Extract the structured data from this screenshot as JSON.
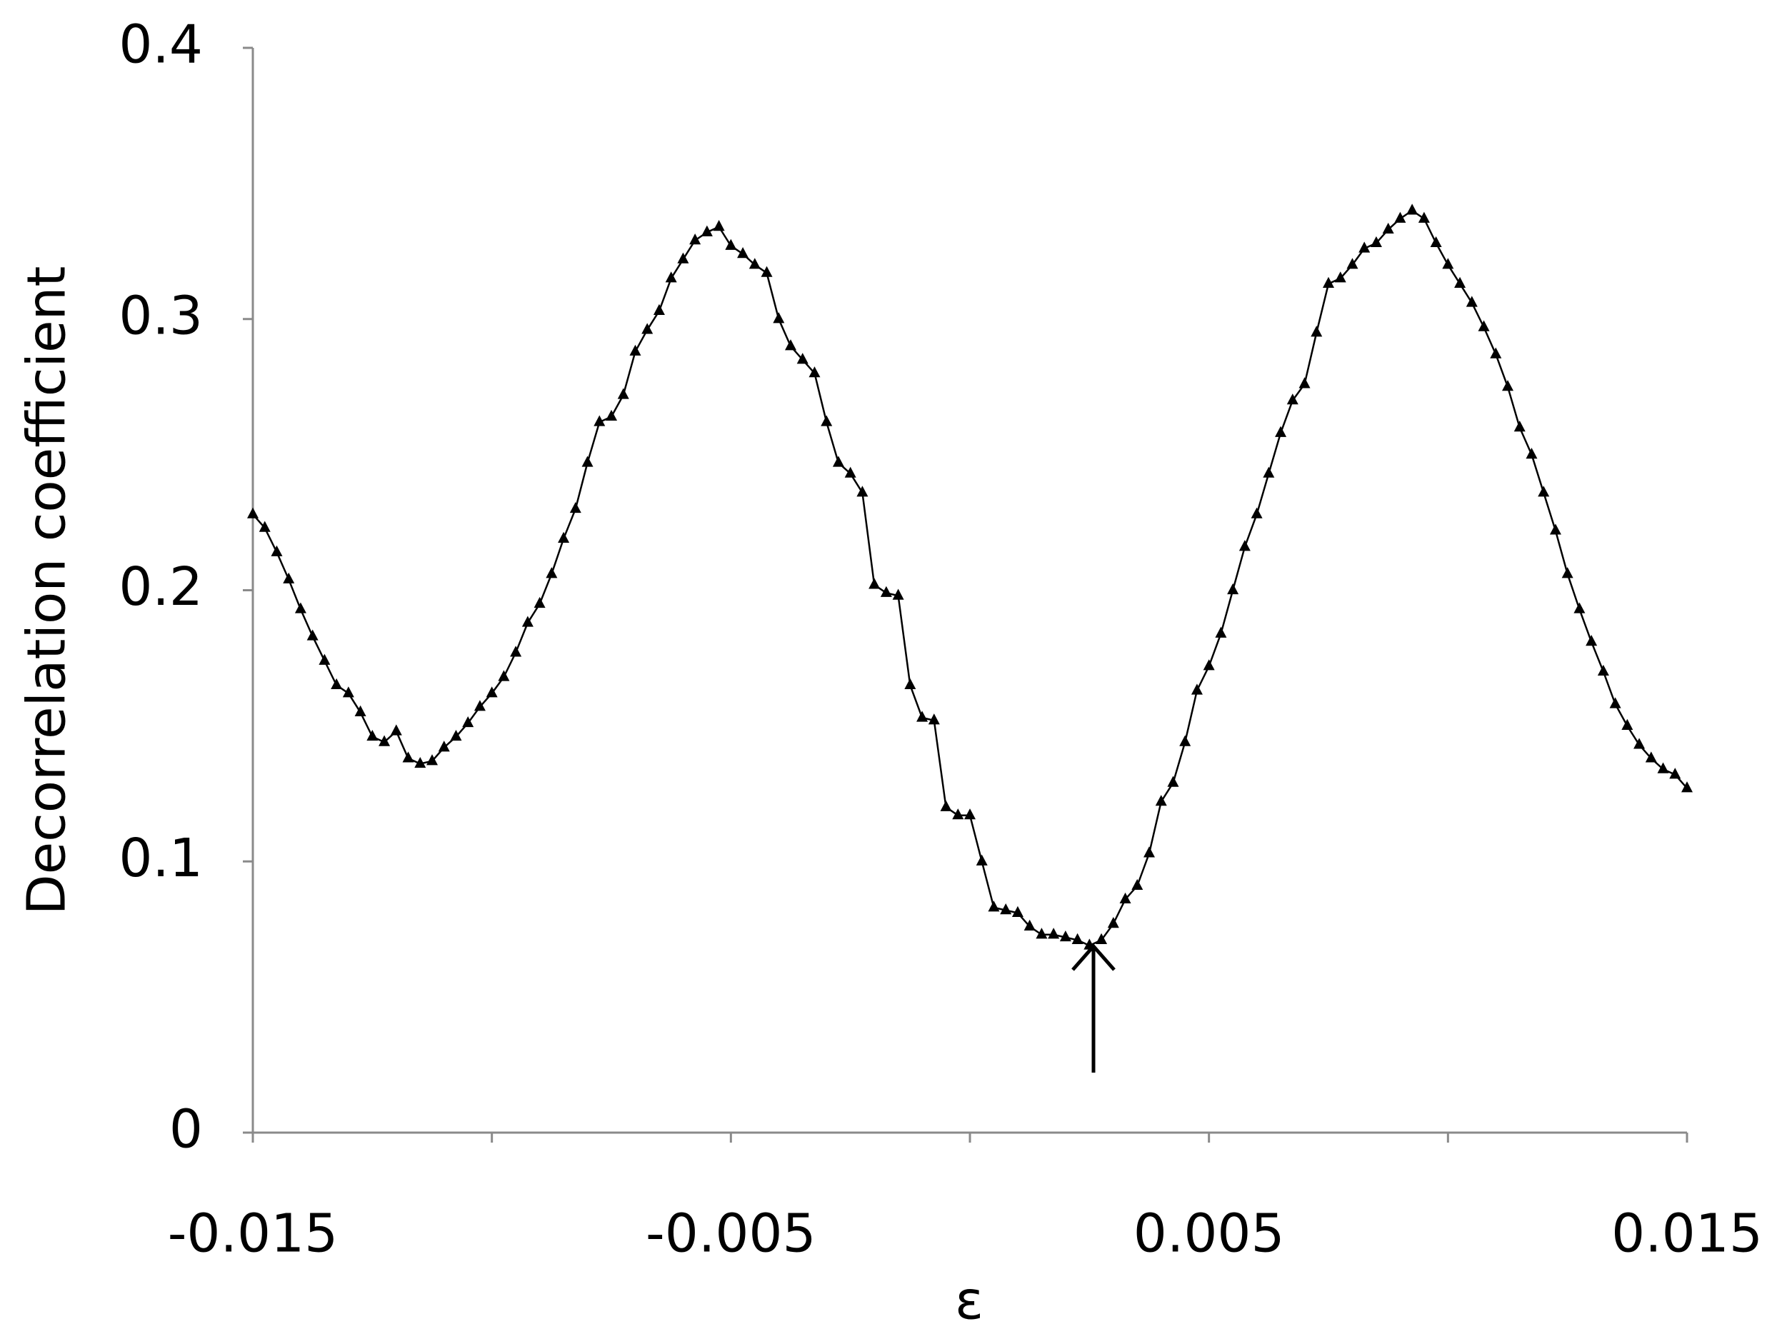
{
  "chart_data": {
    "type": "scatter-line",
    "x_label": "ε",
    "y_label": "Decorrelation coefficient",
    "xlim": [
      -0.015,
      0.015
    ],
    "xticks": [
      -0.015,
      -0.005,
      0.005,
      0.015
    ],
    "xminor_ticks": [
      -0.01,
      0,
      0.01
    ],
    "ylim": [
      0,
      0.4
    ],
    "yticks": [
      0,
      0.1,
      0.2,
      0.3,
      0.4
    ],
    "color": "#000000",
    "x": [
      -0.015,
      -0.01475,
      -0.0145,
      -0.01425,
      -0.014,
      -0.01375,
      -0.0135,
      -0.01325,
      -0.013,
      -0.01275,
      -0.0125,
      -0.01225,
      -0.012,
      -0.01175,
      -0.0115,
      -0.01125,
      -0.011,
      -0.01075,
      -0.0105,
      -0.01025,
      -0.01,
      -0.00975,
      -0.0095,
      -0.00925,
      -0.009,
      -0.00875,
      -0.0085,
      -0.00825,
      -0.008,
      -0.00775,
      -0.0075,
      -0.00725,
      -0.007,
      -0.00675,
      -0.0065,
      -0.00625,
      -0.006,
      -0.00575,
      -0.0055,
      -0.00525,
      -0.005,
      -0.00475,
      -0.0045,
      -0.00425,
      -0.004,
      -0.00375,
      -0.0035,
      -0.00325,
      -0.003,
      -0.00275,
      -0.0025,
      -0.00225,
      -0.002,
      -0.00175,
      -0.0015,
      -0.00125,
      -0.001,
      -0.00075,
      -0.0005,
      -0.00025,
      0,
      0.00025,
      0.0005,
      0.00075,
      0.001,
      0.00125,
      0.0015,
      0.00175,
      0.002,
      0.00225,
      0.0025,
      0.00275,
      0.003,
      0.00325,
      0.0035,
      0.00375,
      0.004,
      0.00425,
      0.0045,
      0.00475,
      0.005,
      0.00525,
      0.0055,
      0.00575,
      0.006,
      0.00625,
      0.0065,
      0.00675,
      0.007,
      0.00725,
      0.0075,
      0.00775,
      0.008,
      0.00825,
      0.0085,
      0.00875,
      0.009,
      0.00925,
      0.0095,
      0.00975,
      0.01,
      0.01025,
      0.0105,
      0.01075,
      0.011,
      0.01125,
      0.0115,
      0.01175,
      0.012,
      0.01225,
      0.0125,
      0.01275,
      0.013,
      0.01325,
      0.0135,
      0.01375,
      0.014,
      0.01425,
      0.0145,
      0.01475,
      0.015
    ],
    "values": [
      0.228,
      0.223,
      0.214,
      0.204,
      0.193,
      0.183,
      0.174,
      0.165,
      0.162,
      0.155,
      0.146,
      0.144,
      0.148,
      0.138,
      0.136,
      0.137,
      0.142,
      0.146,
      0.151,
      0.157,
      0.162,
      0.168,
      0.177,
      0.188,
      0.195,
      0.206,
      0.219,
      0.23,
      0.247,
      0.262,
      0.264,
      0.272,
      0.288,
      0.296,
      0.303,
      0.315,
      0.322,
      0.329,
      0.332,
      0.334,
      0.327,
      0.324,
      0.32,
      0.317,
      0.3,
      0.29,
      0.285,
      0.28,
      0.262,
      0.247,
      0.243,
      0.236,
      0.202,
      0.199,
      0.198,
      0.165,
      0.153,
      0.152,
      0.12,
      0.117,
      0.117,
      0.1,
      0.083,
      0.082,
      0.081,
      0.076,
      0.073,
      0.073,
      0.072,
      0.071,
      0.069,
      0.071,
      0.077,
      0.086,
      0.091,
      0.103,
      0.122,
      0.129,
      0.144,
      0.163,
      0.172,
      0.184,
      0.2,
      0.216,
      0.228,
      0.243,
      0.258,
      0.27,
      0.276,
      0.295,
      0.313,
      0.315,
      0.32,
      0.326,
      0.328,
      0.333,
      0.337,
      0.34,
      0.337,
      0.328,
      0.32,
      0.313,
      0.306,
      0.297,
      0.287,
      0.275,
      0.26,
      0.25,
      0.236,
      0.222,
      0.206,
      0.193,
      0.181,
      0.17,
      0.158,
      0.15,
      0.143,
      0.138,
      0.134,
      0.132,
      0.127
    ]
  }
}
